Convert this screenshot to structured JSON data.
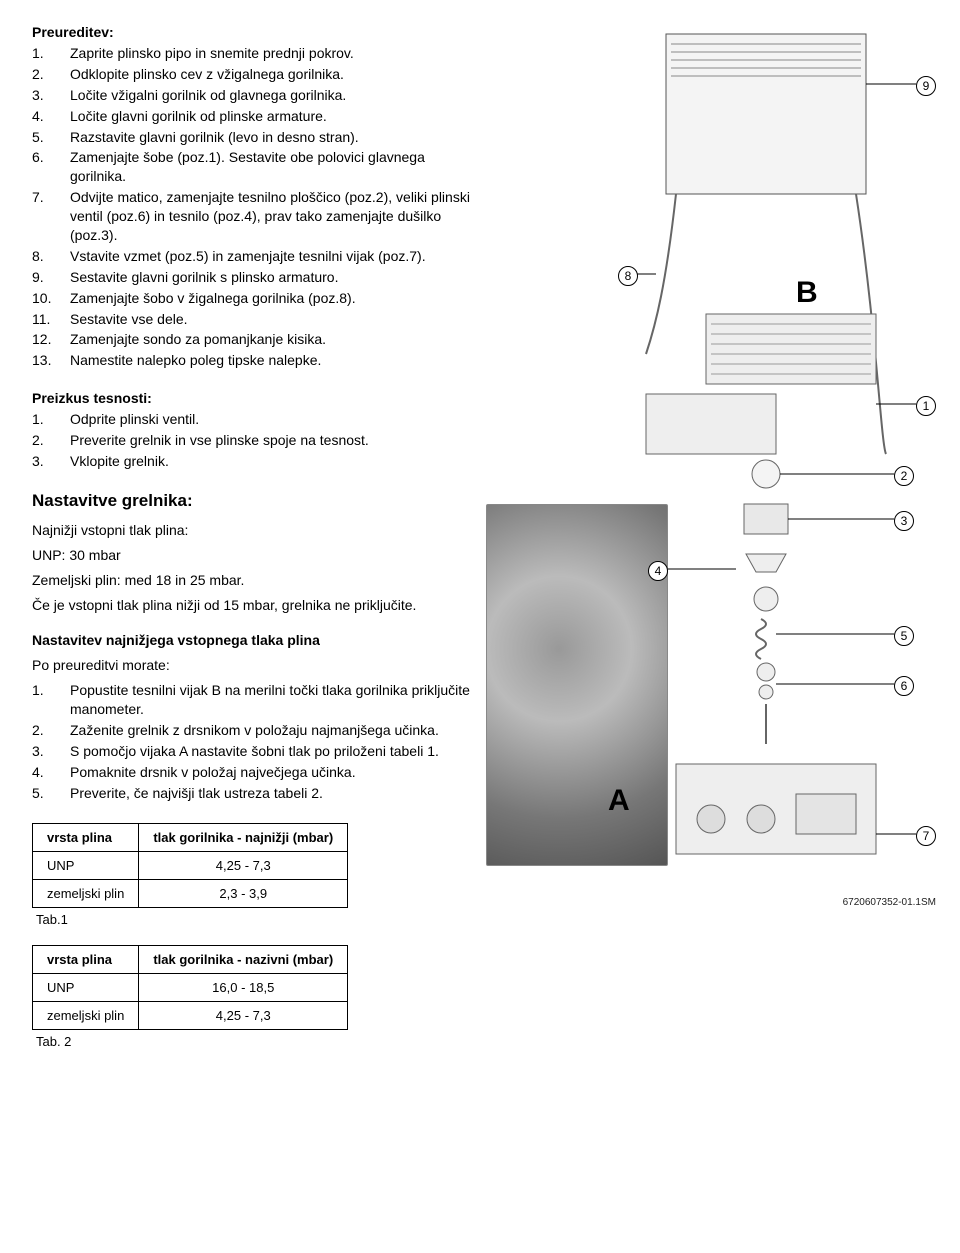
{
  "preureditev": {
    "title": "Preureditev:",
    "items": [
      "Zaprite plinsko pipo in snemite prednji pokrov.",
      "Odklopite plinsko cev z vžigalnega gorilnika.",
      "Ločite vžigalni gorilnik od glavnega gorilnika.",
      "Ločite glavni gorilnik od plinske armature.",
      "Razstavite glavni gorilnik (levo in desno stran).",
      "Zamenjajte šobe (poz.1). Sestavite obe polovici glavnega gorilnika.",
      "Odvijte matico, zamenjajte tesnilno ploščico (poz.2), veliki plinski ventil (poz.6) in tesnilo (poz.4), prav tako zamenjajte dušilko (poz.3).",
      "Vstavite vzmet (poz.5) in zamenjajte tesnilni vijak (poz.7).",
      "Sestavite glavni gorilnik s plinsko armaturo.",
      "Zamenjajte šobo v žigalnega gorilnika (poz.8).",
      "Sestavite vse dele.",
      "Zamenjajte sondo za pomanjkanje kisika.",
      "Namestite nalepko poleg tipske nalepke."
    ]
  },
  "preizkus": {
    "title": "Preizkus tesnosti:",
    "items": [
      "Odprite plinski ventil.",
      "Preverite grelnik in vse plinske spoje na tesnost.",
      "Vklopite grelnik."
    ]
  },
  "nastavitve": {
    "title": "Nastavitve grelnika:",
    "p1": "Najnižji vstopni tlak plina:",
    "p1_line1": "UNP: 30 mbar",
    "p1_line2": "Zemeljski plin: med 18 in 25 mbar.",
    "p2": "Če je vstopni tlak plina nižji od 15 mbar, grelnika ne priključite.",
    "subhead": "Nastavitev najnižjega vstopnega tlaka plina",
    "pre": "Po preureditvi morate:",
    "steps": [
      "Popustite tesnilni vijak B na merilni točki tlaka gorilnika priključite manometer.",
      "Zaženite grelnik z drsnikom v položaju najmanjšega učinka.",
      "S pomočjo vijaka A nastavite šobni tlak po priloženi tabeli 1.",
      "Pomaknite drsnik v položaj največjega učinka.",
      "Preverite, če najvišji tlak ustreza tabeli 2."
    ]
  },
  "table1": {
    "caption": "Tab.1",
    "headers": [
      "vrsta plina",
      "tlak gorilnika - najnižji  (mbar)"
    ],
    "rows": [
      [
        "UNP",
        "4,25 - 7,3"
      ],
      [
        "zemeljski plin",
        "2,3 - 3,9"
      ]
    ]
  },
  "table2": {
    "caption": "Tab. 2",
    "headers": [
      "vrsta plina",
      "tlak gorilnika - nazivni  (mbar)"
    ],
    "rows": [
      [
        "UNP",
        "16,0 - 18,5"
      ],
      [
        "zemeljski plin",
        "4,25 - 7,3"
      ]
    ]
  },
  "diagram": {
    "callouts": {
      "1": "1",
      "2": "2",
      "3": "3",
      "4": "4",
      "5": "5",
      "6": "6",
      "7": "7",
      "8": "8",
      "9": "9"
    },
    "letters": {
      "A": "A",
      "B": "B"
    },
    "caption": "6720607352-01.1SM"
  }
}
